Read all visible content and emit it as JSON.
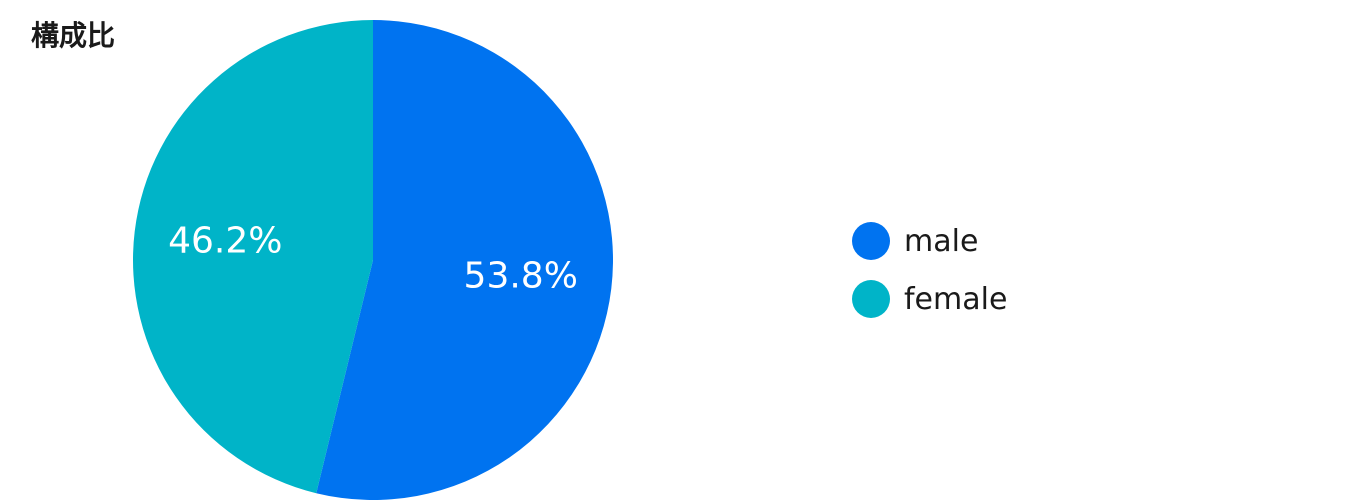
{
  "chart_data": {
    "type": "pie",
    "title": "構成比",
    "slices": [
      {
        "name": "male",
        "value": 53.8,
        "label": "53.8%",
        "color": "#0073f0"
      },
      {
        "name": "female",
        "value": 46.2,
        "label": "46.2%",
        "color": "#00b4c8"
      }
    ],
    "legend_position": "right"
  }
}
